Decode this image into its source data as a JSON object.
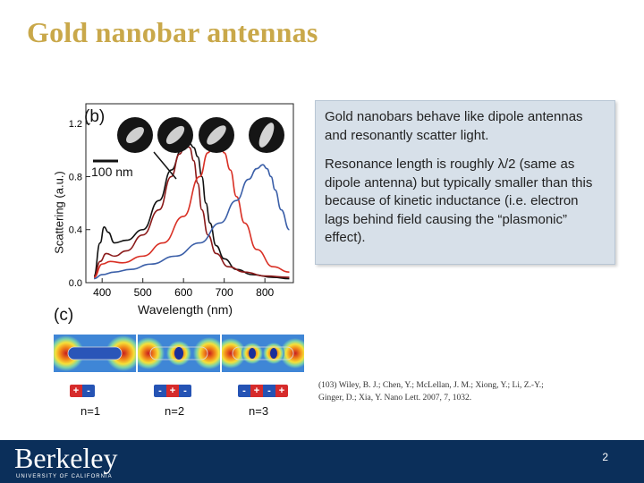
{
  "slide": {
    "title": "Gold nanobar antennas",
    "page_number": "2"
  },
  "figure": {
    "panel_b_label": "(b)",
    "panel_c_label": "(c)",
    "scale_bar_label": "100 nm",
    "mode_labels": [
      "n=1",
      "n=2",
      "n=3"
    ],
    "dipole_patterns": [
      [
        "+",
        "-"
      ],
      [
        "-",
        "+",
        "-"
      ],
      [
        "-",
        "+",
        "-",
        "+"
      ]
    ],
    "colors": {
      "series_black": "#111111",
      "series_red": "#d93025",
      "series_darkred": "#8b1a1a",
      "series_blue": "#3b5fa8",
      "plus": "#d62b2b",
      "minus": "#2553b4"
    }
  },
  "chart_data": {
    "type": "line",
    "title": "",
    "xlabel": "Wavelength (nm)",
    "ylabel": "Scattering (a.u.)",
    "xlim": [
      360,
      870
    ],
    "ylim": [
      0,
      1.35
    ],
    "xticks": [
      400,
      500,
      600,
      700,
      800
    ],
    "yticks": [
      0.0,
      0.4,
      0.8,
      1.2
    ],
    "ytick_labels": [
      "0.0",
      "0.4",
      "0.8",
      "1.2"
    ],
    "series": [
      {
        "name": "black",
        "x": [
          380,
          395,
          405,
          415,
          430,
          460,
          500,
          540,
          570,
          595,
          615,
          625,
          635,
          645,
          655,
          665,
          680,
          700,
          730,
          770,
          820,
          860
        ],
        "y": [
          0.05,
          0.3,
          0.42,
          0.38,
          0.3,
          0.32,
          0.4,
          0.62,
          0.85,
          1.0,
          1.05,
          1.02,
          0.95,
          0.8,
          0.6,
          0.45,
          0.28,
          0.18,
          0.1,
          0.06,
          0.04,
          0.03
        ]
      },
      {
        "name": "darkred",
        "x": [
          380,
          395,
          410,
          430,
          460,
          500,
          540,
          570,
          590,
          605,
          615,
          625,
          635,
          645,
          660,
          680,
          710,
          750,
          800,
          860
        ],
        "y": [
          0.04,
          0.16,
          0.22,
          0.2,
          0.24,
          0.36,
          0.55,
          0.8,
          0.97,
          1.05,
          1.02,
          0.92,
          0.75,
          0.55,
          0.36,
          0.22,
          0.12,
          0.08,
          0.05,
          0.04
        ]
      },
      {
        "name": "red",
        "x": [
          380,
          400,
          420,
          450,
          500,
          550,
          600,
          640,
          660,
          675,
          690,
          700,
          715,
          730,
          750,
          780,
          820,
          860
        ],
        "y": [
          0.04,
          0.14,
          0.16,
          0.15,
          0.2,
          0.3,
          0.5,
          0.8,
          0.98,
          1.06,
          1.05,
          0.98,
          0.85,
          0.65,
          0.45,
          0.25,
          0.12,
          0.08
        ]
      },
      {
        "name": "blue",
        "x": [
          380,
          400,
          430,
          470,
          520,
          580,
          640,
          690,
          730,
          760,
          780,
          795,
          805,
          815,
          825,
          840,
          860
        ],
        "y": [
          0.03,
          0.06,
          0.08,
          0.1,
          0.14,
          0.2,
          0.3,
          0.45,
          0.62,
          0.78,
          0.86,
          0.89,
          0.86,
          0.8,
          0.7,
          0.55,
          0.4
        ]
      }
    ]
  },
  "textbox": {
    "paragraph1": "Gold nanobars behave like dipole antennas and resonantly scatter light.",
    "paragraph2": "Resonance length is roughly λ/2 (same as dipole antenna) but typically smaller than this because of kinetic inductance (i.e. electron lags behind field causing the “plasmonic” effect)."
  },
  "citation": {
    "line1": "(103) Wiley, B. J.; Chen, Y.; McLellan, J. M.; Xiong, Y.; Li, Z.-Y.;",
    "line2": "Ginger, D.; Xia, Y. Nano Lett. 2007, 7, 1032."
  },
  "footer": {
    "logo_text": "Berkeley",
    "logo_subtext": "UNIVERSITY OF CALIFORNIA",
    "background": "#0b2f5a"
  }
}
